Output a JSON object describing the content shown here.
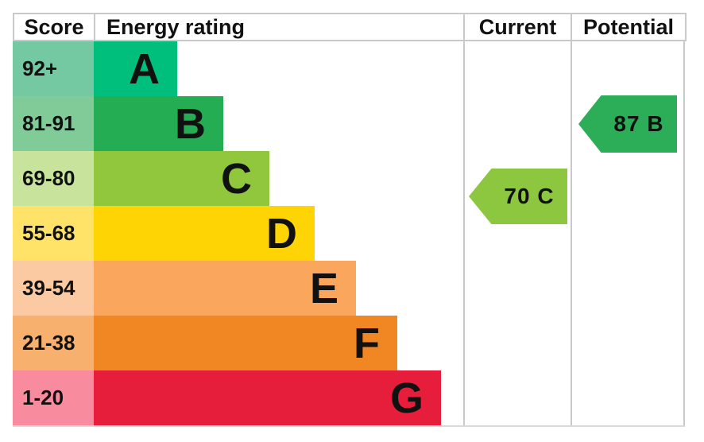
{
  "header": {
    "score": "Score",
    "energy_rating": "Energy rating",
    "current": "Current",
    "potential": "Potential"
  },
  "bands": [
    {
      "letter": "A",
      "score_range": "92+",
      "bar_color": "#00bf7d",
      "score_bg": "#74c9a3"
    },
    {
      "letter": "B",
      "score_range": "81-91",
      "bar_color": "#24ad53",
      "score_bg": "#80cb97"
    },
    {
      "letter": "C",
      "score_range": "69-80",
      "bar_color": "#90c73d",
      "score_bg": "#c7e39c"
    },
    {
      "letter": "D",
      "score_range": "55-68",
      "bar_color": "#fed405",
      "score_bg": "#ffe369"
    },
    {
      "letter": "E",
      "score_range": "39-54",
      "bar_color": "#faa65d",
      "score_bg": "#fbcaa2"
    },
    {
      "letter": "F",
      "score_range": "21-38",
      "bar_color": "#f08723",
      "score_bg": "#f8b06e"
    },
    {
      "letter": "G",
      "score_range": "1-20",
      "bar_color": "#e71d3c",
      "score_bg": "#f88b9e"
    }
  ],
  "current": {
    "label": "70 C",
    "value": 70,
    "rating": "C",
    "color": "#8dc740"
  },
  "potential": {
    "label": "87 B",
    "value": 87,
    "rating": "B",
    "color": "#2bae57"
  },
  "chart_data": {
    "type": "bar",
    "title": "Energy rating (EPC)",
    "columns": [
      "Score",
      "Energy rating",
      "Current",
      "Potential"
    ],
    "categories": [
      "A",
      "B",
      "C",
      "D",
      "E",
      "F",
      "G"
    ],
    "score_ranges": [
      "92+",
      "81-91",
      "69-80",
      "55-68",
      "39-54",
      "21-38",
      "1-20"
    ],
    "band_colors": [
      "#00bf7d",
      "#24ad53",
      "#90c73d",
      "#fed405",
      "#faa65d",
      "#f08723",
      "#e71d3c"
    ],
    "relative_bar_widths": [
      105,
      163,
      221,
      278,
      330,
      382,
      437
    ],
    "current": {
      "value": 70,
      "band": "C",
      "color": "#8dc740",
      "column": "Current"
    },
    "potential": {
      "value": 87,
      "band": "B",
      "color": "#2bae57",
      "column": "Potential"
    },
    "legend_position": "none",
    "grid": "column separators only"
  }
}
